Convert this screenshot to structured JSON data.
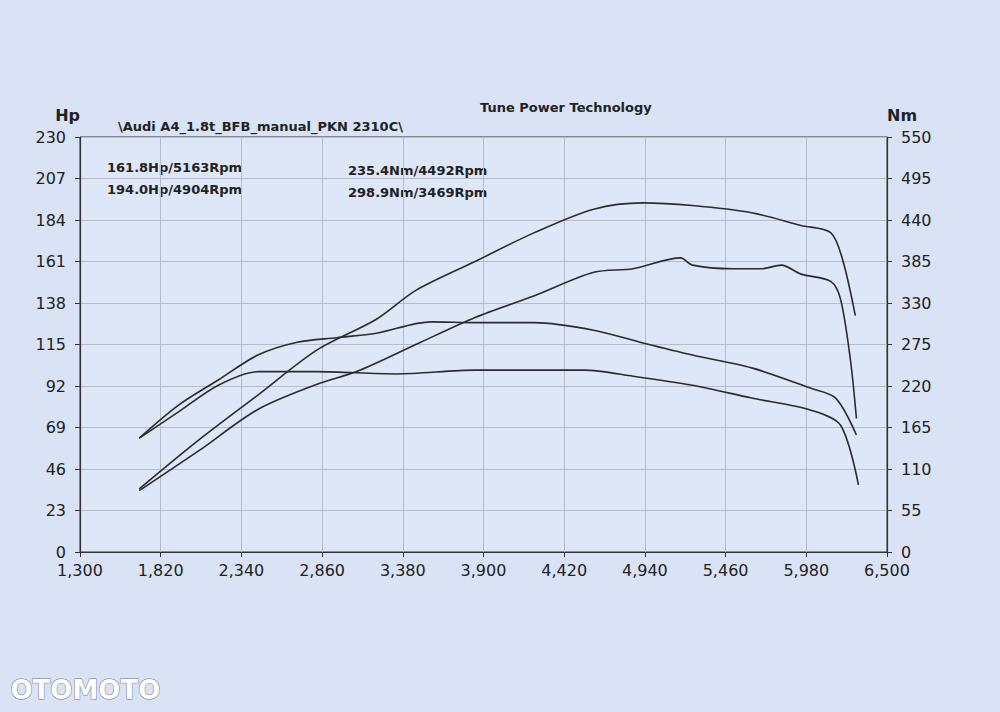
{
  "chart_data": {
    "type": "line",
    "title": "Tune Power Technology",
    "subtitle": "\\Audi A4_1.8t_BFB_manual_PKN 2310C\\",
    "ylabel": "Hp",
    "y2label": "Nm",
    "annotations": [
      "161.8Hp/5163Rpm",
      "194.0Hp/4904Rpm",
      "235.4Nm/4492Rpm",
      "298.9Nm/3469Rpm"
    ],
    "watermark": "OTOMOTO",
    "grid": true,
    "xlim": [
      1300,
      6500
    ],
    "xticks": [
      1300,
      1820,
      2340,
      2860,
      3380,
      3900,
      4420,
      4940,
      5460,
      5980,
      6500
    ],
    "ylim": [
      0,
      230
    ],
    "yticks": [
      0,
      23,
      46,
      69,
      92,
      115,
      138,
      161,
      184,
      207,
      230
    ],
    "y2lim": [
      0,
      550
    ],
    "y2ticks": [
      0,
      55,
      110,
      165,
      220,
      275,
      330,
      385,
      440,
      495,
      550
    ],
    "series": [
      {
        "color": "#2b2b2b",
        "line_style": "solid",
        "x": [
          1682,
          2064,
          2446,
          2828,
          3210,
          3464,
          3846,
          4228,
          4610,
          4928,
          5246,
          5628,
          5946,
          6137,
          6214,
          6296
        ],
        "values": [
          35,
          62,
          87,
          112,
          129,
          145,
          161,
          177,
          190,
          193.5,
          192,
          188,
          181,
          177,
          162,
          131
        ]
      },
      {
        "color": "#2b2b2b",
        "line_style": "solid",
        "x": [
          1682,
          2064,
          2446,
          2828,
          3082,
          3464,
          3846,
          4228,
          4610,
          4864,
          5170,
          5246,
          5501,
          5692,
          5819,
          5946,
          6137,
          6201,
          6265,
          6303
        ],
        "values": [
          34,
          56,
          79,
          93,
          100,
          115,
          130,
          142,
          155,
          157,
          163,
          159,
          157,
          157,
          159,
          154,
          150,
          140,
          106,
          74
        ]
      },
      {
        "color": "#2b2b2b",
        "line_style": "solid",
        "axis": "y2",
        "x": [
          1682,
          1937,
          2191,
          2446,
          2700,
          2955,
          3210,
          3560,
          3846,
          4228,
          4610,
          4928,
          5246,
          5628,
          6010,
          6169,
          6303
        ],
        "values": [
          151,
          195,
          228,
          261,
          278,
          284,
          290,
          305,
          304,
          304,
          294,
          277,
          261,
          244,
          217,
          204,
          155
        ]
      },
      {
        "color": "#2b2b2b",
        "line_style": "solid",
        "axis": "y2",
        "x": [
          1682,
          1937,
          2191,
          2446,
          2828,
          3337,
          3846,
          4546,
          4864,
          5246,
          5628,
          6010,
          6201,
          6316
        ],
        "values": [
          151,
          186,
          221,
          239,
          239,
          236,
          241,
          241,
          233,
          221,
          204,
          188,
          168,
          89
        ]
      }
    ]
  }
}
